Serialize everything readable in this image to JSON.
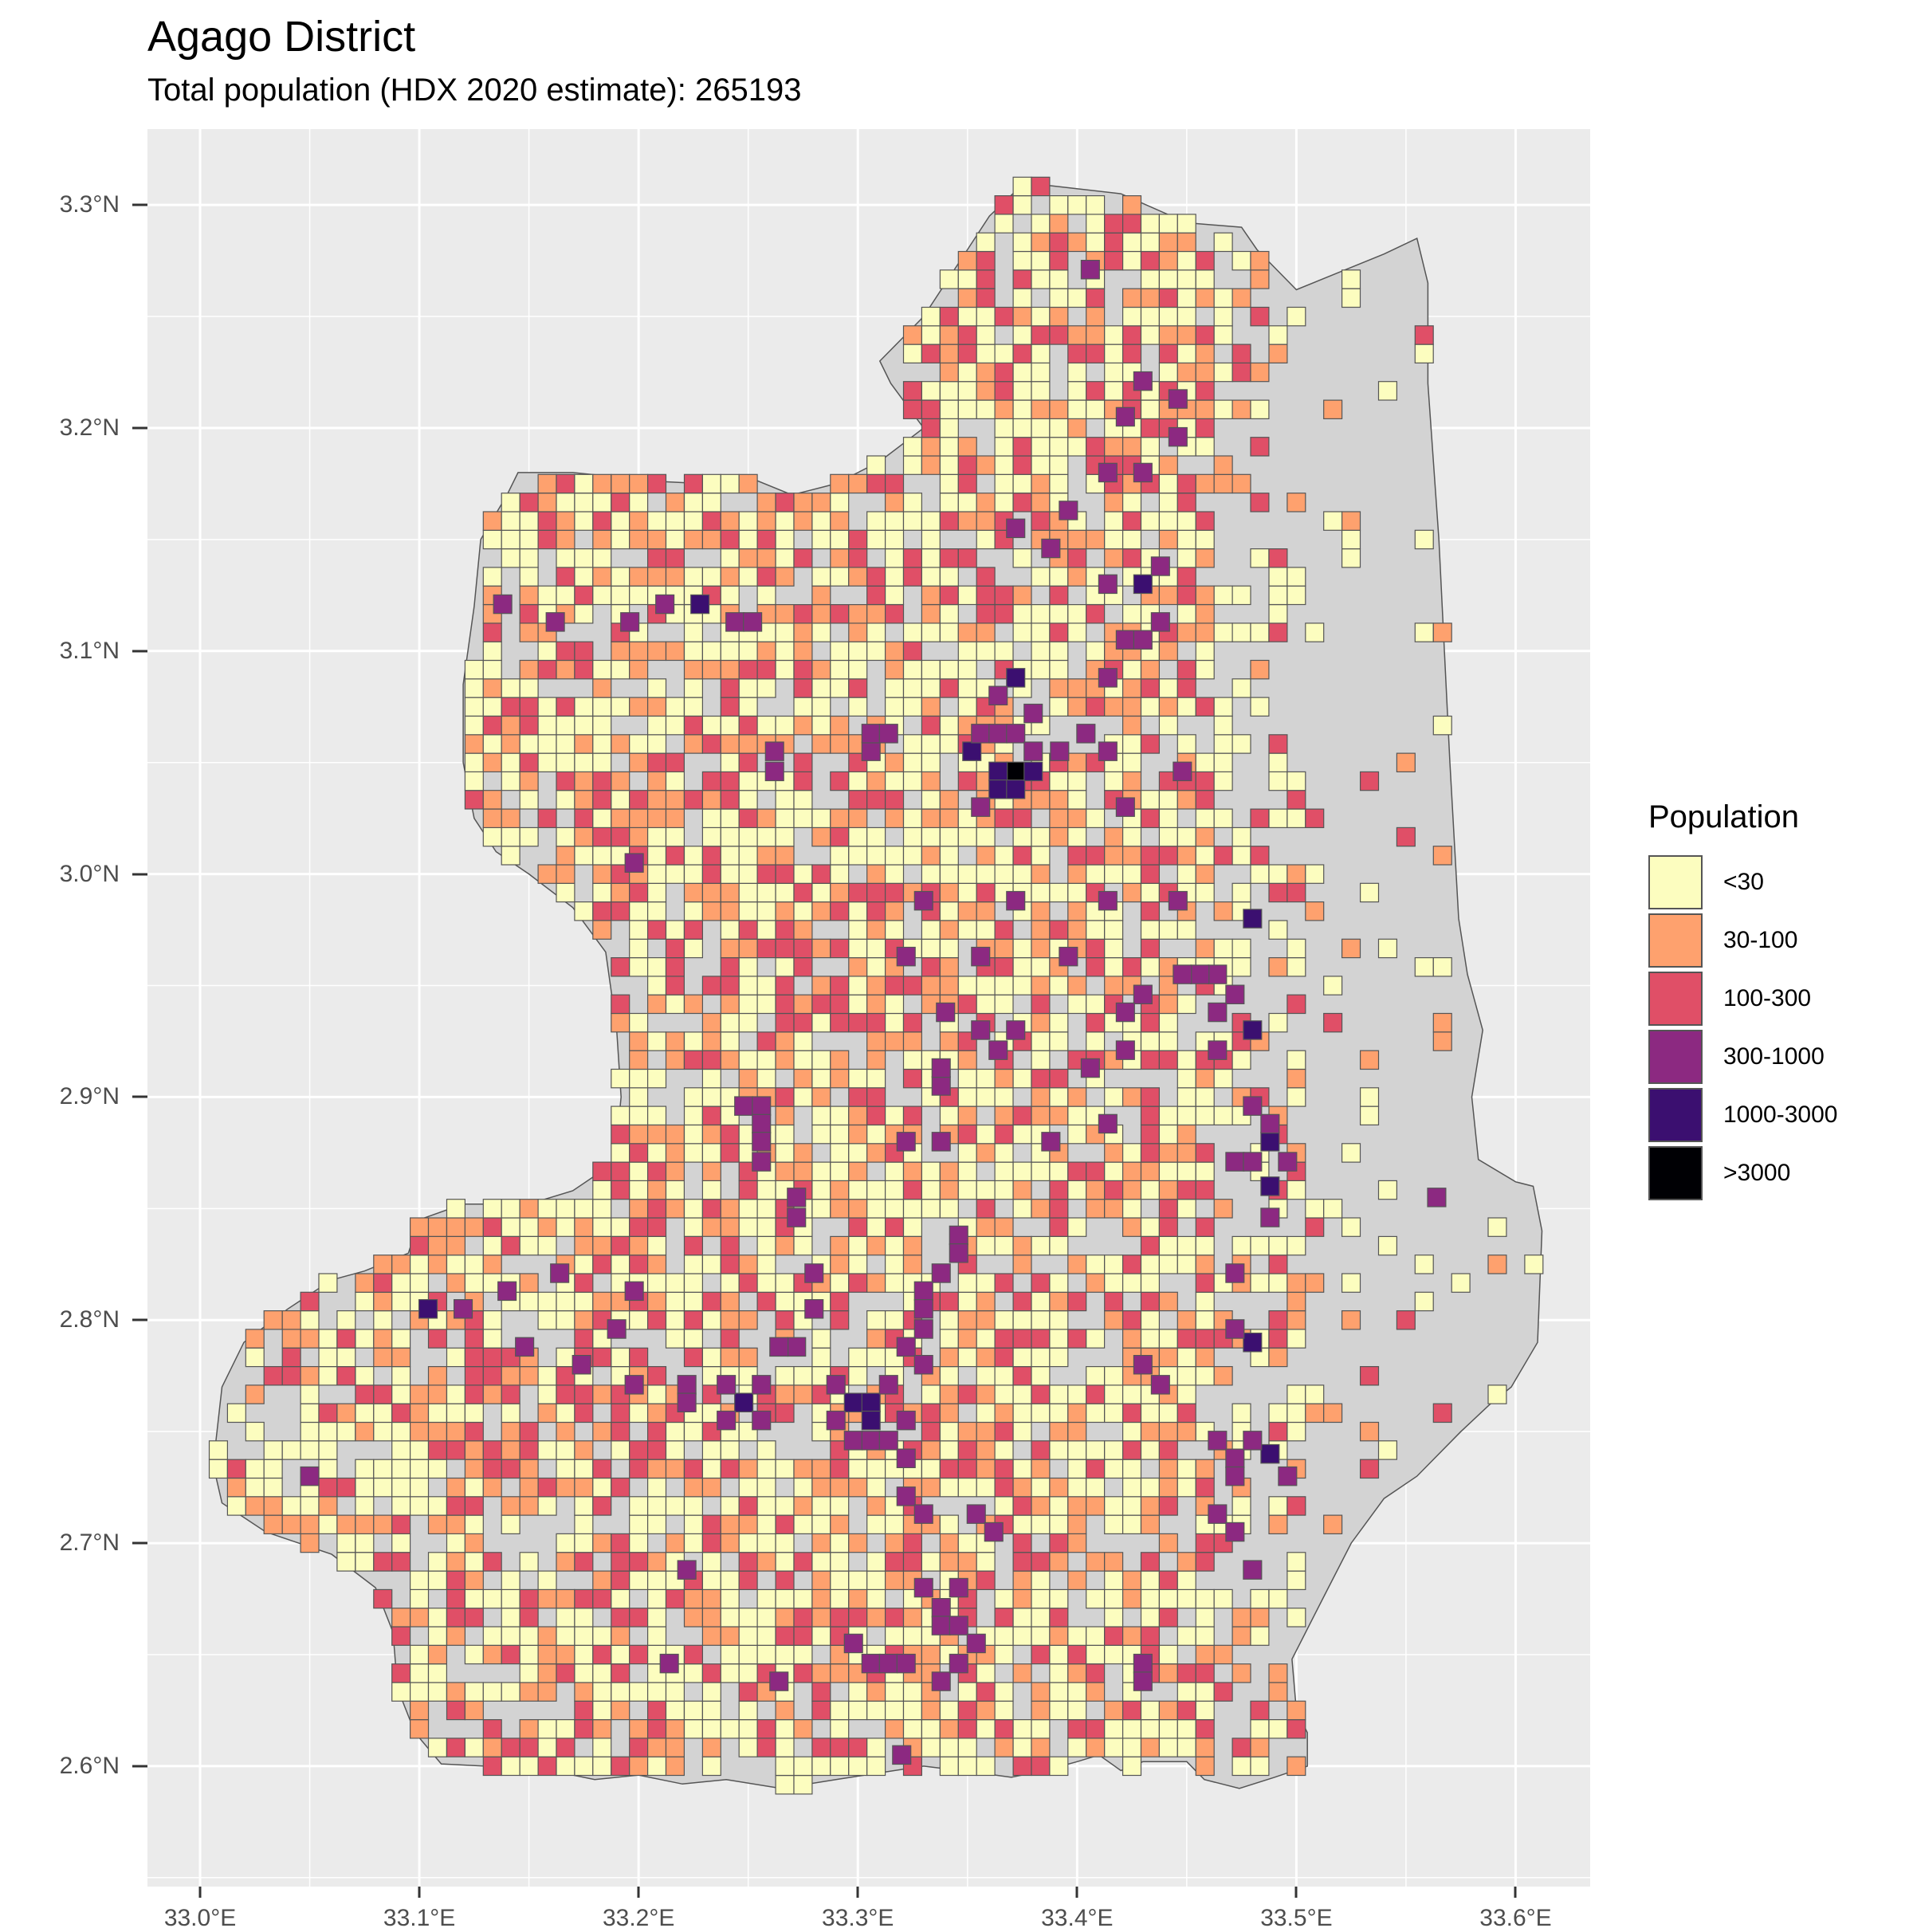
{
  "title": "Agago District",
  "subtitle": "Total population (HDX 2020 estimate): 265193",
  "legend": {
    "title": "Population",
    "items": [
      {
        "label": "<30",
        "color": "#fcfdbf"
      },
      {
        "label": "30-100",
        "color": "#fea16e"
      },
      {
        "label": "100-300",
        "color": "#e04f67"
      },
      {
        "label": "300-1000",
        "color": "#8c2981"
      },
      {
        "label": "1000-3000",
        "color": "#3b0f70"
      },
      {
        "label": ">3000",
        "color": "#000004"
      }
    ]
  },
  "axes": {
    "x_ticks": [
      "33.0°E",
      "33.1°E",
      "33.2°E",
      "33.3°E",
      "33.4°E",
      "33.5°E",
      "33.6°E"
    ],
    "y_ticks": [
      "3.3°N",
      "3.2°N",
      "3.1°N",
      "3.0°N",
      "2.9°N",
      "2.8°N",
      "2.7°N",
      "2.6°N"
    ],
    "x_values": [
      33.0,
      33.1,
      33.2,
      33.3,
      33.4,
      33.5,
      33.6
    ],
    "y_values": [
      3.3,
      3.2,
      3.1,
      3.0,
      2.9,
      2.8,
      2.7,
      2.6
    ],
    "xlim": [
      32.976,
      33.634
    ],
    "ylim": [
      2.546,
      3.334
    ],
    "grid": true
  },
  "colors": {
    "panel_background": "#ebebeb",
    "district_fill": "#d3d3d3",
    "district_outline": "#555555",
    "grid": "#ffffff",
    "cell_outline": "#555555"
  },
  "chart_data": {
    "type": "heatmap",
    "cell_size_deg": 0.008333,
    "categories": [
      "<30",
      "30-100",
      "100-300",
      "300-1000",
      "1000-3000",
      ">3000"
    ],
    "boundary": [
      [
        33.376,
        3.31
      ],
      [
        33.42,
        3.305
      ],
      [
        33.45,
        3.292
      ],
      [
        33.475,
        3.29
      ],
      [
        33.482,
        3.28
      ],
      [
        33.49,
        3.272
      ],
      [
        33.5,
        3.262
      ],
      [
        33.52,
        3.27
      ],
      [
        33.54,
        3.278
      ],
      [
        33.555,
        3.285
      ],
      [
        33.56,
        3.265
      ],
      [
        33.56,
        3.22
      ],
      [
        33.565,
        3.15
      ],
      [
        33.57,
        3.05
      ],
      [
        33.574,
        2.98
      ],
      [
        33.578,
        2.955
      ],
      [
        33.585,
        2.93
      ],
      [
        33.58,
        2.9
      ],
      [
        33.583,
        2.872
      ],
      [
        33.6,
        2.862
      ],
      [
        33.608,
        2.86
      ],
      [
        33.612,
        2.84
      ],
      [
        33.61,
        2.79
      ],
      [
        33.598,
        2.77
      ],
      [
        33.588,
        2.762
      ],
      [
        33.575,
        2.75
      ],
      [
        33.555,
        2.73
      ],
      [
        33.54,
        2.72
      ],
      [
        33.525,
        2.7
      ],
      [
        33.512,
        2.675
      ],
      [
        33.498,
        2.648
      ],
      [
        33.5,
        2.625
      ],
      [
        33.505,
        2.615
      ],
      [
        33.505,
        2.6
      ],
      [
        33.49,
        2.595
      ],
      [
        33.474,
        2.59
      ],
      [
        33.458,
        2.594
      ],
      [
        33.45,
        2.602
      ],
      [
        33.43,
        2.602
      ],
      [
        33.42,
        2.598
      ],
      [
        33.41,
        2.605
      ],
      [
        33.4,
        2.602
      ],
      [
        33.385,
        2.598
      ],
      [
        33.37,
        2.595
      ],
      [
        33.355,
        2.597
      ],
      [
        33.33,
        2.6
      ],
      [
        33.31,
        2.597
      ],
      [
        33.29,
        2.594
      ],
      [
        33.265,
        2.59
      ],
      [
        33.24,
        2.594
      ],
      [
        33.22,
        2.592
      ],
      [
        33.2,
        2.596
      ],
      [
        33.18,
        2.594
      ],
      [
        33.16,
        2.598
      ],
      [
        33.13,
        2.6
      ],
      [
        33.11,
        2.601
      ],
      [
        33.098,
        2.615
      ],
      [
        33.09,
        2.635
      ],
      [
        33.088,
        2.66
      ],
      [
        33.08,
        2.68
      ],
      [
        33.06,
        2.695
      ],
      [
        33.045,
        2.7
      ],
      [
        33.03,
        2.705
      ],
      [
        33.01,
        2.718
      ],
      [
        33.006,
        2.735
      ],
      [
        33.01,
        2.77
      ],
      [
        33.02,
        2.79
      ],
      [
        33.04,
        2.805
      ],
      [
        33.06,
        2.818
      ],
      [
        33.075,
        2.822
      ],
      [
        33.095,
        2.83
      ],
      [
        33.1,
        2.845
      ],
      [
        33.12,
        2.852
      ],
      [
        33.15,
        2.852
      ],
      [
        33.17,
        2.858
      ],
      [
        33.188,
        2.87
      ],
      [
        33.19,
        2.88
      ],
      [
        33.192,
        2.9
      ],
      [
        33.19,
        2.93
      ],
      [
        33.185,
        2.965
      ],
      [
        33.17,
        2.985
      ],
      [
        33.15,
        3.0
      ],
      [
        33.135,
        3.01
      ],
      [
        33.125,
        3.025
      ],
      [
        33.12,
        3.05
      ],
      [
        33.12,
        3.085
      ],
      [
        33.125,
        3.12
      ],
      [
        33.128,
        3.15
      ],
      [
        33.14,
        3.17
      ],
      [
        33.145,
        3.18
      ],
      [
        33.17,
        3.18
      ],
      [
        33.19,
        3.178
      ],
      [
        33.21,
        3.176
      ],
      [
        33.23,
        3.175
      ],
      [
        33.25,
        3.178
      ],
      [
        33.27,
        3.17
      ],
      [
        33.29,
        3.175
      ],
      [
        33.31,
        3.185
      ],
      [
        33.33,
        3.2
      ],
      [
        33.315,
        3.22
      ],
      [
        33.31,
        3.23
      ],
      [
        33.33,
        3.25
      ],
      [
        33.35,
        3.28
      ],
      [
        33.36,
        3.295
      ]
    ],
    "cells": [
      [
        33.372,
        3.046,
        ">3000"
      ],
      [
        33.364,
        3.046,
        "1000-3000"
      ],
      [
        33.364,
        3.038,
        "1000-3000"
      ],
      [
        33.372,
        3.038,
        "1000-3000"
      ],
      [
        33.372,
        3.088,
        "1000-3000"
      ],
      [
        33.228,
        3.121,
        "1000-3000"
      ],
      [
        33.43,
        3.13,
        "1000-3000"
      ],
      [
        33.48,
        2.98,
        "1000-3000"
      ],
      [
        33.48,
        2.93,
        "1000-3000"
      ],
      [
        33.488,
        2.88,
        "1000-3000"
      ],
      [
        33.488,
        2.86,
        "1000-3000"
      ],
      [
        33.48,
        2.79,
        "1000-3000"
      ],
      [
        33.488,
        2.74,
        "1000-3000"
      ],
      [
        33.104,
        2.805,
        "1000-3000"
      ],
      [
        33.248,
        2.763,
        "1000-3000"
      ],
      [
        33.298,
        2.763,
        "1000-3000"
      ],
      [
        33.306,
        2.763,
        "1000-3000"
      ],
      [
        33.306,
        2.755,
        "1000-3000"
      ],
      [
        33.352,
        3.055,
        "1000-3000"
      ],
      [
        33.38,
        3.046,
        "1000-3000"
      ],
      [
        33.356,
        3.063,
        "300-1000"
      ],
      [
        33.364,
        3.063,
        "300-1000"
      ],
      [
        33.372,
        3.063,
        "300-1000"
      ],
      [
        33.38,
        3.055,
        "300-1000"
      ],
      [
        33.356,
        3.03,
        "300-1000"
      ],
      [
        33.364,
        3.08,
        "300-1000"
      ],
      [
        33.38,
        3.072,
        "300-1000"
      ],
      [
        33.392,
        3.055,
        "300-1000"
      ],
      [
        33.404,
        3.063,
        "300-1000"
      ],
      [
        33.414,
        3.088,
        "300-1000"
      ],
      [
        33.422,
        3.105,
        "300-1000"
      ],
      [
        33.43,
        3.105,
        "300-1000"
      ],
      [
        33.438,
        3.113,
        "300-1000"
      ],
      [
        33.438,
        3.138,
        "300-1000"
      ],
      [
        33.414,
        3.13,
        "300-1000"
      ],
      [
        33.396,
        3.163,
        "300-1000"
      ],
      [
        33.414,
        3.18,
        "300-1000"
      ],
      [
        33.43,
        3.18,
        "300-1000"
      ],
      [
        33.446,
        3.196,
        "300-1000"
      ],
      [
        33.446,
        3.213,
        "300-1000"
      ],
      [
        33.43,
        3.221,
        "300-1000"
      ],
      [
        33.422,
        3.205,
        "300-1000"
      ],
      [
        33.406,
        3.271,
        "300-1000"
      ],
      [
        33.388,
        3.146,
        "300-1000"
      ],
      [
        33.372,
        3.155,
        "300-1000"
      ],
      [
        33.244,
        3.113,
        "300-1000"
      ],
      [
        33.252,
        3.113,
        "300-1000"
      ],
      [
        33.212,
        3.121,
        "300-1000"
      ],
      [
        33.138,
        3.121,
        "300-1000"
      ],
      [
        33.162,
        3.113,
        "300-1000"
      ],
      [
        33.196,
        3.113,
        "300-1000"
      ],
      [
        33.262,
        3.055,
        "300-1000"
      ],
      [
        33.262,
        3.046,
        "300-1000"
      ],
      [
        33.306,
        3.055,
        "300-1000"
      ],
      [
        33.306,
        3.063,
        "300-1000"
      ],
      [
        33.314,
        3.063,
        "300-1000"
      ],
      [
        33.198,
        3.005,
        "300-1000"
      ],
      [
        33.322,
        2.963,
        "300-1000"
      ],
      [
        33.33,
        2.988,
        "300-1000"
      ],
      [
        33.356,
        2.963,
        "300-1000"
      ],
      [
        33.372,
        2.988,
        "300-1000"
      ],
      [
        33.372,
        2.93,
        "300-1000"
      ],
      [
        33.356,
        2.93,
        "300-1000"
      ],
      [
        33.248,
        2.896,
        "300-1000"
      ],
      [
        33.256,
        2.896,
        "300-1000"
      ],
      [
        33.256,
        2.888,
        "300-1000"
      ],
      [
        33.256,
        2.88,
        "300-1000"
      ],
      [
        33.256,
        2.871,
        "300-1000"
      ],
      [
        33.272,
        2.855,
        "300-1000"
      ],
      [
        33.272,
        2.846,
        "300-1000"
      ],
      [
        33.322,
        2.88,
        "300-1000"
      ],
      [
        33.338,
        2.88,
        "300-1000"
      ],
      [
        33.338,
        2.905,
        "300-1000"
      ],
      [
        33.338,
        2.913,
        "300-1000"
      ],
      [
        33.346,
        2.838,
        "300-1000"
      ],
      [
        33.346,
        2.83,
        "300-1000"
      ],
      [
        33.338,
        2.821,
        "300-1000"
      ],
      [
        33.33,
        2.813,
        "300-1000"
      ],
      [
        33.33,
        2.805,
        "300-1000"
      ],
      [
        33.33,
        2.796,
        "300-1000"
      ],
      [
        33.322,
        2.788,
        "300-1000"
      ],
      [
        33.33,
        2.78,
        "300-1000"
      ],
      [
        33.28,
        2.821,
        "300-1000"
      ],
      [
        33.28,
        2.805,
        "300-1000"
      ],
      [
        33.272,
        2.788,
        "300-1000"
      ],
      [
        33.264,
        2.788,
        "300-1000"
      ],
      [
        33.222,
        2.771,
        "300-1000"
      ],
      [
        33.222,
        2.763,
        "300-1000"
      ],
      [
        33.24,
        2.771,
        "300-1000"
      ],
      [
        33.24,
        2.755,
        "300-1000"
      ],
      [
        33.256,
        2.771,
        "300-1000"
      ],
      [
        33.256,
        2.755,
        "300-1000"
      ],
      [
        33.29,
        2.771,
        "300-1000"
      ],
      [
        33.29,
        2.755,
        "300-1000"
      ],
      [
        33.298,
        2.746,
        "300-1000"
      ],
      [
        33.306,
        2.746,
        "300-1000"
      ],
      [
        33.314,
        2.746,
        "300-1000"
      ],
      [
        33.314,
        2.771,
        "300-1000"
      ],
      [
        33.322,
        2.755,
        "300-1000"
      ],
      [
        33.322,
        2.738,
        "300-1000"
      ],
      [
        33.322,
        2.721,
        "300-1000"
      ],
      [
        33.33,
        2.713,
        "300-1000"
      ],
      [
        33.33,
        2.68,
        "300-1000"
      ],
      [
        33.338,
        2.671,
        "300-1000"
      ],
      [
        33.338,
        2.663,
        "300-1000"
      ],
      [
        33.346,
        2.68,
        "300-1000"
      ],
      [
        33.346,
        2.663,
        "300-1000"
      ],
      [
        33.354,
        2.655,
        "300-1000"
      ],
      [
        33.354,
        2.713,
        "300-1000"
      ],
      [
        33.362,
        2.705,
        "300-1000"
      ],
      [
        33.298,
        2.655,
        "300-1000"
      ],
      [
        33.306,
        2.646,
        "300-1000"
      ],
      [
        33.314,
        2.646,
        "300-1000"
      ],
      [
        33.322,
        2.646,
        "300-1000"
      ],
      [
        33.338,
        2.638,
        "300-1000"
      ],
      [
        33.346,
        2.646,
        "300-1000"
      ],
      [
        33.264,
        2.638,
        "300-1000"
      ],
      [
        33.214,
        2.646,
        "300-1000"
      ],
      [
        33.222,
        2.688,
        "300-1000"
      ],
      [
        33.198,
        2.771,
        "300-1000"
      ],
      [
        33.19,
        2.796,
        "300-1000"
      ],
      [
        33.198,
        2.813,
        "300-1000"
      ],
      [
        33.174,
        2.78,
        "300-1000"
      ],
      [
        33.164,
        2.821,
        "300-1000"
      ],
      [
        33.148,
        2.788,
        "300-1000"
      ],
      [
        33.12,
        2.805,
        "300-1000"
      ],
      [
        33.14,
        2.813,
        "300-1000"
      ],
      [
        33.05,
        2.73,
        "300-1000"
      ],
      [
        33.32,
        2.605,
        "300-1000"
      ],
      [
        33.43,
        2.646,
        "300-1000"
      ],
      [
        33.43,
        2.638,
        "300-1000"
      ],
      [
        33.43,
        2.78,
        "300-1000"
      ],
      [
        33.438,
        2.771,
        "300-1000"
      ],
      [
        33.464,
        2.746,
        "300-1000"
      ],
      [
        33.472,
        2.738,
        "300-1000"
      ],
      [
        33.48,
        2.746,
        "300-1000"
      ],
      [
        33.472,
        2.73,
        "300-1000"
      ],
      [
        33.496,
        2.73,
        "300-1000"
      ],
      [
        33.464,
        2.713,
        "300-1000"
      ],
      [
        33.472,
        2.705,
        "300-1000"
      ],
      [
        33.48,
        2.688,
        "300-1000"
      ],
      [
        33.472,
        2.796,
        "300-1000"
      ],
      [
        33.472,
        2.821,
        "300-1000"
      ],
      [
        33.488,
        2.846,
        "300-1000"
      ],
      [
        33.472,
        2.871,
        "300-1000"
      ],
      [
        33.48,
        2.871,
        "300-1000"
      ],
      [
        33.488,
        2.888,
        "300-1000"
      ],
      [
        33.496,
        2.871,
        "300-1000"
      ],
      [
        33.48,
        2.896,
        "300-1000"
      ],
      [
        33.464,
        2.921,
        "300-1000"
      ],
      [
        33.464,
        2.938,
        "300-1000"
      ],
      [
        33.472,
        2.946,
        "300-1000"
      ],
      [
        33.464,
        2.955,
        "300-1000"
      ],
      [
        33.456,
        2.955,
        "300-1000"
      ],
      [
        33.448,
        2.955,
        "300-1000"
      ],
      [
        33.43,
        2.946,
        "300-1000"
      ],
      [
        33.422,
        2.938,
        "300-1000"
      ],
      [
        33.422,
        2.921,
        "300-1000"
      ],
      [
        33.406,
        2.913,
        "300-1000"
      ],
      [
        33.414,
        2.888,
        "300-1000"
      ],
      [
        33.396,
        2.963,
        "300-1000"
      ],
      [
        33.414,
        2.988,
        "300-1000"
      ],
      [
        33.446,
        2.988,
        "300-1000"
      ],
      [
        33.422,
        3.03,
        "300-1000"
      ],
      [
        33.448,
        3.046,
        "300-1000"
      ],
      [
        33.414,
        3.055,
        "300-1000"
      ],
      [
        33.564,
        2.855,
        "300-1000"
      ],
      [
        33.388,
        2.88,
        "300-1000"
      ],
      [
        33.34,
        2.938,
        "300-1000"
      ],
      [
        33.364,
        2.921,
        "300-1000"
      ]
    ]
  }
}
